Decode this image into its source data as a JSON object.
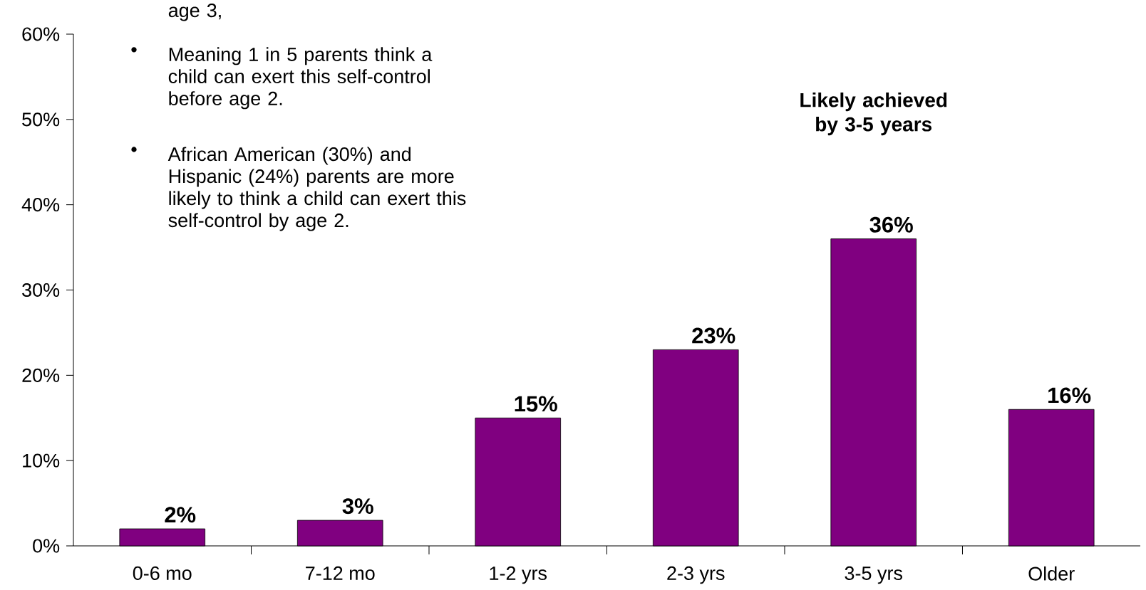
{
  "chart_data": {
    "type": "bar",
    "categories": [
      "0-6 mo",
      "7-12 mo",
      "1-2 yrs",
      "2-3 yrs",
      "3-5 yrs",
      "Older"
    ],
    "values": [
      2,
      3,
      15,
      23,
      36,
      16
    ],
    "value_labels": [
      "2%",
      "3%",
      "15%",
      "23%",
      "36%",
      "16%"
    ],
    "color": "#800080",
    "ylim": [
      0,
      60
    ],
    "yticks": [
      {
        "value": 0,
        "label": "0%"
      },
      {
        "value": 10,
        "label": "10%"
      },
      {
        "value": 20,
        "label": "20%"
      },
      {
        "value": 30,
        "label": "30%"
      },
      {
        "value": 40,
        "label": "40%"
      },
      {
        "value": 50,
        "label": "50%"
      },
      {
        "value": 60,
        "label": "60%"
      }
    ],
    "grid": false,
    "annotations": [
      "age 3,",
      "•",
      "Meaning 1 in 5 parents think a child can exert this self-control before age 2.",
      "•",
      "African American (30%) and Hispanic (24%) parents are more likely to think a child can exert this self-control by age 2.",
      "Likely achieved by 3-5 years"
    ]
  }
}
